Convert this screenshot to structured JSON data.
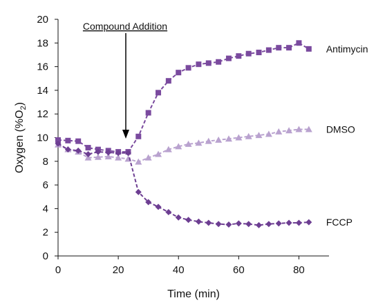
{
  "chart_data": {
    "type": "line",
    "xlabel": "Time (min)",
    "ylabel_main": "Oxygen (%O",
    "ylabel_sub": "2",
    "ylabel_close": ")",
    "xlim": [
      0,
      90
    ],
    "ylim": [
      0,
      20
    ],
    "xticks": [
      0,
      20,
      40,
      60,
      80
    ],
    "yticks": [
      0,
      2,
      4,
      6,
      8,
      10,
      12,
      14,
      16,
      18,
      20
    ],
    "grid": false,
    "annotation": {
      "text": "Compound Addition",
      "x": 22.5
    },
    "series": [
      {
        "name": "Antimycin",
        "marker": "square",
        "color": "#7a4a9e",
        "x": [
          0,
          3.3,
          6.7,
          10,
          13.3,
          16.7,
          20,
          23.3,
          26.7,
          30,
          33.3,
          36.7,
          40,
          43.3,
          46.7,
          50,
          53.3,
          56.7,
          60,
          63.3,
          66.7,
          70,
          73.3,
          76.7,
          80,
          83.3
        ],
        "values": [
          9.8,
          9.75,
          9.7,
          9.15,
          9.0,
          8.9,
          8.8,
          8.8,
          10.1,
          12.1,
          13.8,
          14.8,
          15.5,
          15.9,
          16.2,
          16.3,
          16.4,
          16.7,
          16.9,
          17.1,
          17.2,
          17.4,
          17.6,
          17.6,
          18.0,
          17.5
        ]
      },
      {
        "name": "DMSO",
        "marker": "triangle",
        "color": "#b9a2cf",
        "x": [
          0,
          3.3,
          6.7,
          10,
          13.3,
          16.7,
          20,
          23.3,
          26.7,
          30,
          33.3,
          36.7,
          40,
          43.3,
          46.7,
          50,
          53.3,
          56.7,
          60,
          63.3,
          66.7,
          70,
          73.3,
          76.7,
          80,
          83.3
        ],
        "values": [
          9.4,
          9.0,
          8.8,
          8.3,
          8.35,
          8.4,
          8.3,
          8.2,
          7.95,
          8.3,
          8.6,
          9.0,
          9.25,
          9.45,
          9.55,
          9.7,
          9.8,
          9.9,
          10.0,
          10.1,
          10.2,
          10.3,
          10.5,
          10.6,
          10.7,
          10.7
        ]
      },
      {
        "name": "FCCP",
        "marker": "diamond",
        "color": "#6d3e92",
        "x": [
          0,
          3.3,
          6.7,
          10,
          13.3,
          16.7,
          20,
          23.3,
          26.7,
          30,
          33.3,
          36.7,
          40,
          43.3,
          46.7,
          50,
          53.3,
          56.7,
          60,
          63.3,
          66.7,
          70,
          73.3,
          76.7,
          80,
          83.3
        ],
        "values": [
          9.5,
          9.0,
          8.9,
          8.6,
          8.8,
          8.75,
          8.7,
          8.7,
          5.4,
          4.55,
          4.15,
          3.7,
          3.25,
          3.05,
          2.9,
          2.8,
          2.7,
          2.65,
          2.75,
          2.7,
          2.6,
          2.7,
          2.75,
          2.8,
          2.8,
          2.85
        ]
      }
    ]
  }
}
